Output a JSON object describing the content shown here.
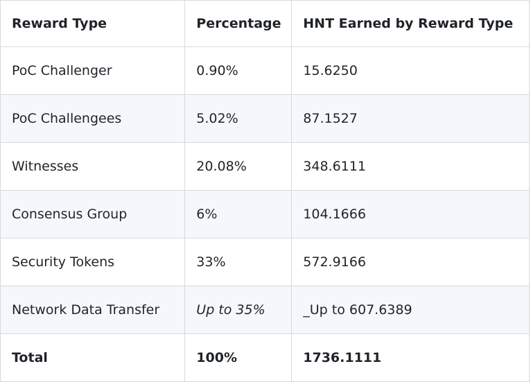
{
  "table": {
    "headers": [
      "Reward Type",
      "Percentage",
      "HNT Earned by Reward Type"
    ],
    "rows": [
      {
        "type": "PoC Challenger",
        "percentage": "0.90%",
        "hnt": "15.6250"
      },
      {
        "type": "PoC Challengees",
        "percentage": "5.02%",
        "hnt": "87.1527"
      },
      {
        "type": "Witnesses",
        "percentage": "20.08%",
        "hnt": "348.6111"
      },
      {
        "type": "Consensus Group",
        "percentage": "6%",
        "hnt": "104.1666"
      },
      {
        "type": "Security Tokens",
        "percentage": "33%",
        "hnt": "572.9166"
      },
      {
        "type": "Network Data Transfer",
        "percentage": "Up to 35%",
        "hnt": "_Up to 607.6389"
      },
      {
        "type": "Total",
        "percentage": "100%",
        "hnt": "1736.1111"
      }
    ]
  }
}
